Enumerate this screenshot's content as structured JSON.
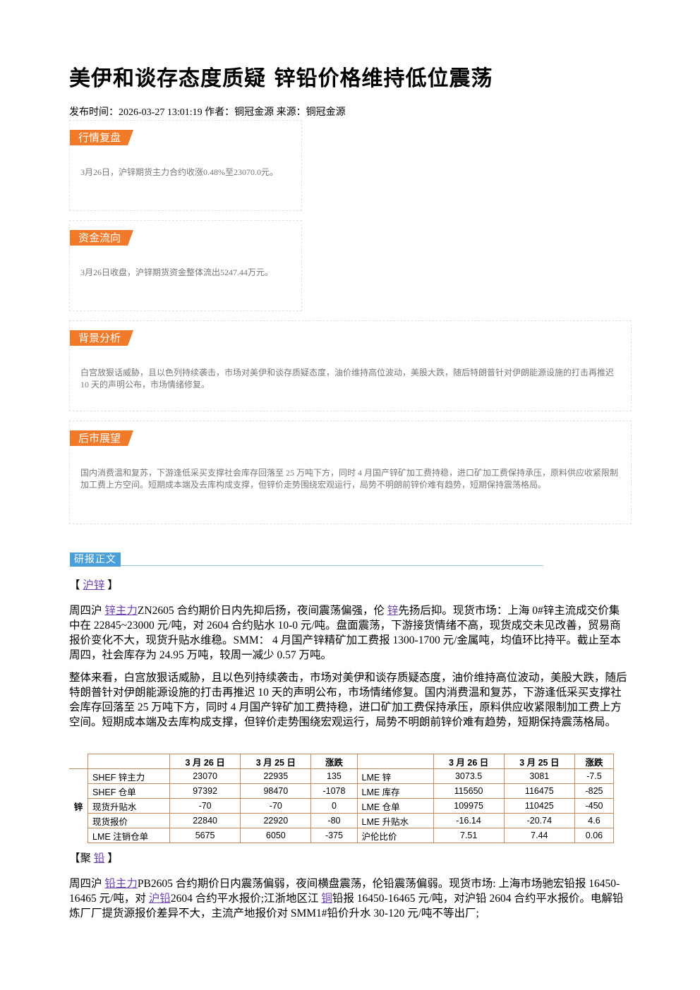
{
  "header": {
    "title": "美伊和谈存态度质疑 锌铅价格维持低位震荡",
    "meta": "发布时间：2026-03-27 13:01:19 作者：铜冠金源 来源：铜冠金源"
  },
  "sections": [
    {
      "heading": "行情复盘",
      "text": "3月26日，沪锌期货主力合约收涨0.48%至23070.0元。"
    },
    {
      "heading": "资金流向",
      "text": "3月26日收盘，沪锌期货资金整体流出5247.44万元。"
    },
    {
      "heading": "背景分析",
      "text": "白宫放狠话威胁，且以色列持续袭击，市场对美伊和谈存质疑态度，油价维持高位波动，美股大跌，随后特朗普针对伊朗能源设施的打击再推迟 10 天的声明公布，市场情绪修复。"
    },
    {
      "heading": "后市展望",
      "text": "国内消费温和复苏，下游逢低采买支撑社会库存回落至 25 万吨下方，同时 4 月国产锌矿加工费持稳，进口矿加工费保持承压，原料供应收紧限制加工费上方空间。短期成本端及去库构成支撑，但锌价走势围绕宏观运行，局势不明朗前锌价难有趋势，短期保持震荡格局。"
    }
  ],
  "report": {
    "heading": "研报正文",
    "zinc": {
      "label": [
        "【 ",
        "沪锌",
        " 】"
      ],
      "paragraphs": [
        [
          "周四沪 ",
          "锌主力",
          "ZN2605 合约期价日内先抑后扬，夜间震荡偏强，伦 ",
          "锌",
          "先扬后抑。现货市场：上海 0#锌主流成交价集中在 22845~23000 元/吨，对 2604 合约贴水 10-0 元/吨。盘面震荡，下游接货情绪不高，现货成交未见改善，贸易商报价变化不大，现货升贴水维稳。SMM： 4 月国产锌精矿加工费报 1300-1700 元/金属吨，均值环比持平。截止至本周四，社会库存为 24.95 万吨，较周一减少 0.57 万吨。"
        ],
        [
          "整体来看，白宫放狠话威胁，且以色列持续袭击，市场对美伊和谈存质疑态度，油价维持高位波动，美股大跌，随后特朗普针对伊朗能源设施的打击再推迟 10 天的声明公布，市场情绪修复。国内消费温和复苏，下游逢低采买支撑社会库存回落至 25 万吨下方，同时 4 月国产锌矿加工费持稳，进口矿加工费保持承压，原料供应收紧限制加工费上方空间。短期成本端及去库构成支撑，但锌价走势围绕宏观运行，局势不明朗前锌价难有趋势，短期保持震荡格局。"
        ]
      ],
      "table": {
        "group": "锌",
        "left_columns": [
          "3 月 26 日",
          "3 月 25 日",
          "涨跌"
        ],
        "right_columns": [
          "3 月 26 日",
          "3 月 25 日",
          "涨跌"
        ],
        "rows": [
          {
            "left_label": "SHEF 锌主力",
            "left": [
              23070,
              22935,
              135
            ],
            "right_label": "LME 锌",
            "right": [
              3073.5,
              3081,
              -7.5
            ]
          },
          {
            "left_label": "SHEF 仓单",
            "left": [
              97392,
              98470,
              -1078
            ],
            "right_label": "LME 库存",
            "right": [
              115650,
              116475,
              -825
            ]
          },
          {
            "left_label": "现货升贴水",
            "left": [
              -70,
              -70,
              0
            ],
            "right_label": "LME 仓单",
            "right": [
              109975,
              110425,
              -450
            ]
          },
          {
            "left_label": "现货报价",
            "left": [
              22840,
              22920,
              -80
            ],
            "right_label": "LME 升贴水",
            "right": [
              -16.14,
              -20.74,
              4.6
            ]
          },
          {
            "left_label": "LME 注销仓单",
            "left": [
              5675,
              6050,
              -375
            ],
            "right_label": "沪伦比价",
            "right": [
              7.51,
              7.44,
              0.06
            ]
          }
        ]
      }
    },
    "lead": {
      "label": [
        "【聚 ",
        "铅",
        " 】"
      ],
      "paragraphs": [
        [
          "周四沪 ",
          "铅主力",
          "PB2605 合约期价日内震荡偏弱，夜间横盘震荡，伦铅震荡偏弱。现货市场: 上海市场驰宏铅报 16450-16465 元/吨，对 ",
          "沪铅",
          "2604 合约平水报价;江浙地区江 ",
          "铜",
          "铅报 16450-16465 元/吨，对沪铅 2604 合约平水报价。电解铅炼厂厂提货源报价差异不大，主流产地报价对 SMM1#铅价升水 30-120 元/吨不等出厂;"
        ]
      ]
    }
  }
}
